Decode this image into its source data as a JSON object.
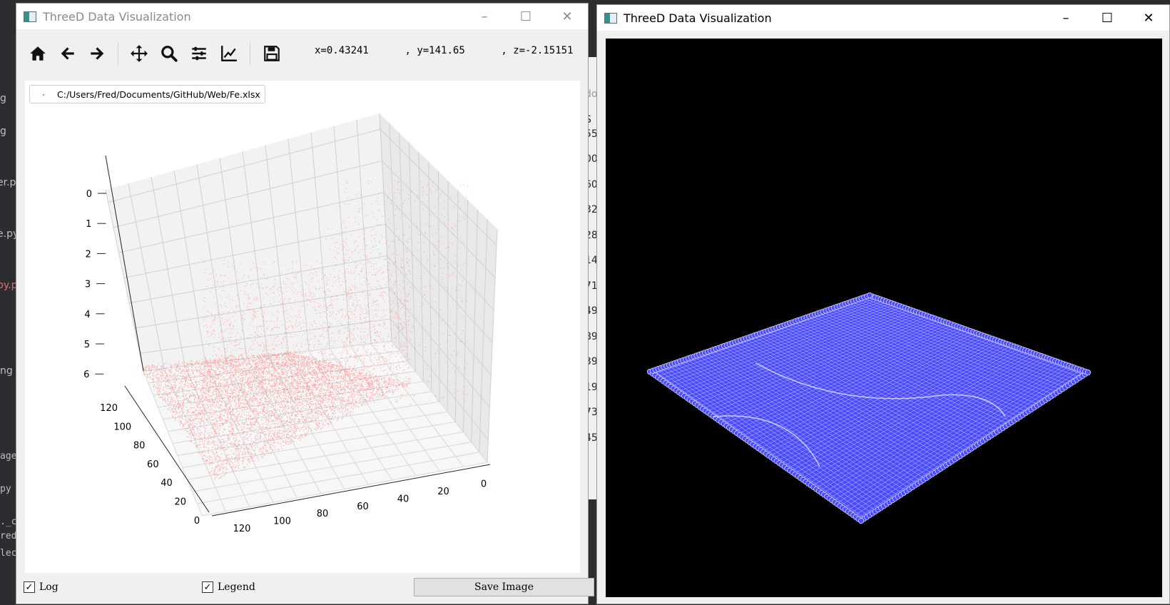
{
  "left_window": {
    "title": "ThreeD Data Visualization",
    "coords": {
      "x": "x=0.43241",
      "y": "y=141.65",
      "z": "z=-2.15151",
      "sep1": ",",
      "sep2": ","
    },
    "legend_label": "C:/Users/Fred/Documents/GitHub/Web/Fe.xlsx",
    "log_label": "Log",
    "legend_checkbox_label": "Legend",
    "save_label": "Save Image",
    "checked_mark": "✓",
    "toolbar_icons": [
      "home-icon",
      "back-arrow-icon",
      "forward-arrow-icon",
      "pan-icon",
      "zoom-icon",
      "subplots-config-icon",
      "axes-edit-icon",
      "save-icon"
    ]
  },
  "right_window": {
    "title": "ThreeD Data Visualization"
  },
  "window_buttons": {
    "minimize": "–",
    "maximize": "☐",
    "close": "✕"
  },
  "chart_data": {
    "type": "scatter",
    "projection": "3d",
    "title": "",
    "z_ticks": [
      "0",
      "1",
      "2",
      "3",
      "4",
      "5",
      "6"
    ],
    "y_ticks": [
      "120",
      "100",
      "80",
      "60",
      "40",
      "20",
      "0"
    ],
    "x_ticks": [
      "120",
      "100",
      "80",
      "60",
      "40",
      "20",
      "0"
    ],
    "xlim": [
      0,
      130
    ],
    "ylim": [
      0,
      130
    ],
    "zlim": [
      0,
      6.5
    ],
    "series": [
      {
        "name": "C:/Users/Fred/Documents/GitHub/Web/Fe.xlsx",
        "color": "#ff6b6b"
      }
    ],
    "legend_position": "top-left",
    "grid": true
  },
  "surface_color": "#4a4aff",
  "ide_background": {
    "left_fragments": [
      "g",
      "g",
      "er.py",
      "e.py",
      "py.p",
      "ng",
      "age",
      "py",
      "._c",
      "red",
      "lec"
    ],
    "mid_fragments": [
      "do",
      "S",
      "55",
      "00",
      "60",
      "32",
      "28",
      "14",
      "71",
      "49",
      "89",
      "39",
      "19",
      "73",
      "45"
    ]
  }
}
